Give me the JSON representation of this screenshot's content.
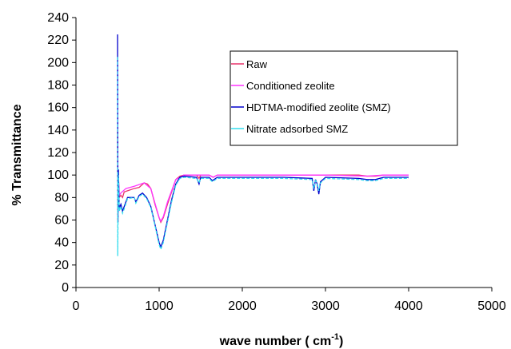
{
  "chart_data": {
    "type": "line",
    "xlabel_main": "wave number ( cm",
    "xlabel_sup": "-1",
    "xlabel_end": ")",
    "ylabel": "% Transmittance",
    "xlim": [
      0,
      5000
    ],
    "ylim": [
      0,
      240
    ],
    "xticks": [
      0,
      1000,
      2000,
      3000,
      4000,
      5000
    ],
    "yticks": [
      0,
      20,
      40,
      60,
      80,
      100,
      120,
      140,
      160,
      180,
      200,
      220,
      240
    ],
    "grid": false,
    "legend_position": "top-right",
    "series": [
      {
        "name": "Raw",
        "color": "#e8336b",
        "points": [
          [
            500,
            140
          ],
          [
            502,
            60
          ],
          [
            505,
            58
          ],
          [
            510,
            100
          ],
          [
            520,
            80
          ],
          [
            540,
            82
          ],
          [
            560,
            80
          ],
          [
            580,
            85
          ],
          [
            620,
            86
          ],
          [
            700,
            88
          ],
          [
            760,
            89
          ],
          [
            820,
            93
          ],
          [
            860,
            92
          ],
          [
            900,
            88
          ],
          [
            950,
            74
          ],
          [
            1000,
            62
          ],
          [
            1020,
            58
          ],
          [
            1050,
            62
          ],
          [
            1100,
            74
          ],
          [
            1150,
            85
          ],
          [
            1200,
            96
          ],
          [
            1250,
            99
          ],
          [
            1300,
            100
          ],
          [
            1450,
            100
          ],
          [
            1480,
            97
          ],
          [
            1500,
            100
          ],
          [
            1600,
            100
          ],
          [
            1650,
            98
          ],
          [
            1700,
            100
          ],
          [
            2000,
            100
          ],
          [
            2500,
            100
          ],
          [
            2900,
            100
          ],
          [
            3000,
            100
          ],
          [
            3400,
            100
          ],
          [
            3500,
            99
          ],
          [
            3600,
            99
          ],
          [
            3700,
            100
          ],
          [
            4000,
            100
          ]
        ]
      },
      {
        "name": "Conditioned zeolite",
        "color": "#ff33ff",
        "points": [
          [
            500,
            190
          ],
          [
            502,
            200
          ],
          [
            505,
            60
          ],
          [
            510,
            100
          ],
          [
            520,
            82
          ],
          [
            540,
            84
          ],
          [
            600,
            88
          ],
          [
            700,
            90
          ],
          [
            820,
            93
          ],
          [
            900,
            88
          ],
          [
            950,
            75
          ],
          [
            1000,
            62
          ],
          [
            1020,
            59
          ],
          [
            1050,
            63
          ],
          [
            1100,
            76
          ],
          [
            1200,
            96
          ],
          [
            1300,
            100
          ],
          [
            1450,
            100
          ],
          [
            1600,
            100
          ],
          [
            1650,
            98
          ],
          [
            1700,
            100
          ],
          [
            2000,
            100
          ],
          [
            3000,
            100
          ],
          [
            3500,
            99
          ],
          [
            3700,
            100
          ],
          [
            4000,
            100
          ]
        ]
      },
      {
        "name": "HDTMA-modified zeolite (SMZ)",
        "color": "#0000cc",
        "points": [
          [
            500,
            225
          ],
          [
            502,
            112
          ],
          [
            505,
            58
          ],
          [
            510,
            105
          ],
          [
            520,
            70
          ],
          [
            540,
            74
          ],
          [
            560,
            68
          ],
          [
            580,
            72
          ],
          [
            620,
            80
          ],
          [
            700,
            80
          ],
          [
            720,
            76
          ],
          [
            760,
            82
          ],
          [
            800,
            84
          ],
          [
            850,
            80
          ],
          [
            900,
            72
          ],
          [
            950,
            56
          ],
          [
            1000,
            40
          ],
          [
            1020,
            36
          ],
          [
            1050,
            42
          ],
          [
            1100,
            60
          ],
          [
            1150,
            78
          ],
          [
            1200,
            92
          ],
          [
            1250,
            98
          ],
          [
            1300,
            99
          ],
          [
            1450,
            98
          ],
          [
            1480,
            92
          ],
          [
            1500,
            98
          ],
          [
            1600,
            98
          ],
          [
            1640,
            95
          ],
          [
            1700,
            98
          ],
          [
            2000,
            98
          ],
          [
            2500,
            98
          ],
          [
            2840,
            97
          ],
          [
            2860,
            86
          ],
          [
            2880,
            96
          ],
          [
            2900,
            92
          ],
          [
            2920,
            83
          ],
          [
            2940,
            94
          ],
          [
            3000,
            98
          ],
          [
            3400,
            97
          ],
          [
            3500,
            96
          ],
          [
            3600,
            96
          ],
          [
            3700,
            98
          ],
          [
            4000,
            98
          ]
        ]
      },
      {
        "name": "Nitrate adsorbed SMZ",
        "color": "#33ddee",
        "points": [
          [
            500,
            205
          ],
          [
            502,
            28
          ],
          [
            505,
            55
          ],
          [
            510,
            100
          ],
          [
            520,
            68
          ],
          [
            540,
            72
          ],
          [
            560,
            66
          ],
          [
            580,
            70
          ],
          [
            620,
            79
          ],
          [
            700,
            80
          ],
          [
            720,
            75
          ],
          [
            760,
            81
          ],
          [
            800,
            83
          ],
          [
            850,
            79
          ],
          [
            900,
            71
          ],
          [
            950,
            55
          ],
          [
            1000,
            38
          ],
          [
            1020,
            34
          ],
          [
            1050,
            40
          ],
          [
            1100,
            58
          ],
          [
            1150,
            76
          ],
          [
            1200,
            91
          ],
          [
            1250,
            97
          ],
          [
            1300,
            98
          ],
          [
            1450,
            97
          ],
          [
            1480,
            93
          ],
          [
            1500,
            97
          ],
          [
            1600,
            97
          ],
          [
            1640,
            94
          ],
          [
            1700,
            97
          ],
          [
            2000,
            97
          ],
          [
            2500,
            97
          ],
          [
            2840,
            96
          ],
          [
            2860,
            88
          ],
          [
            2880,
            95
          ],
          [
            2900,
            93
          ],
          [
            2920,
            86
          ],
          [
            2940,
            93
          ],
          [
            3000,
            97
          ],
          [
            3400,
            96
          ],
          [
            3500,
            95
          ],
          [
            3600,
            95
          ],
          [
            3700,
            97
          ],
          [
            4000,
            97
          ]
        ]
      }
    ]
  }
}
